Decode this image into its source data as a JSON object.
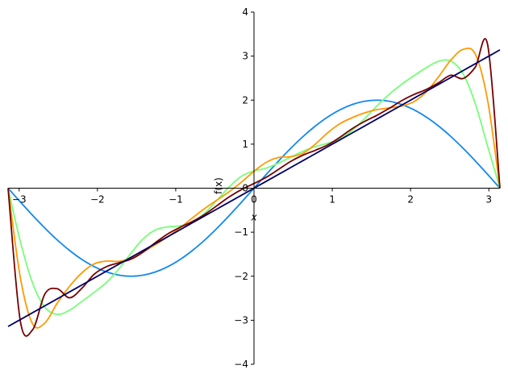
{
  "chart_data": {
    "type": "line",
    "title": "",
    "xlabel": "x",
    "ylabel": "f(x)",
    "xlim": [
      -3.14159,
      3.14159
    ],
    "ylim": [
      -4,
      4
    ],
    "grid": false,
    "legend": "none",
    "axes_style": "centered spines crossing at origin",
    "xticks": [
      -3,
      -2,
      -1,
      0,
      1,
      2,
      3
    ],
    "xtick_labels": [
      "−3",
      "−2",
      "−1",
      "0",
      "1",
      "2",
      "3"
    ],
    "yticks": [
      -4,
      -3,
      -2,
      -1,
      0,
      1,
      2,
      3,
      4
    ],
    "ytick_labels": [
      "−4",
      "−3",
      "−2",
      "−1",
      "0",
      "1",
      "2",
      "3",
      "4"
    ],
    "x": [
      -3.1416,
      -2.9845,
      -2.8274,
      -2.6704,
      -2.5133,
      -2.3562,
      -2.1991,
      -2.042,
      -1.885,
      -1.7279,
      -1.5708,
      -1.4137,
      -1.2566,
      -1.0996,
      -0.9425,
      -0.7854,
      -0.6283,
      -0.4712,
      -0.3142,
      -0.1571,
      0.0,
      0.1571,
      0.3142,
      0.4712,
      0.6283,
      0.7854,
      0.9425,
      1.0996,
      1.2566,
      1.4137,
      1.5708,
      1.7279,
      1.885,
      2.042,
      2.1991,
      2.3562,
      2.5133,
      2.6704,
      2.8274,
      2.9845,
      3.1416
    ],
    "series": [
      {
        "color": "#1188ee",
        "values": [
          0.0,
          -0.313,
          -0.618,
          -0.908,
          -1.176,
          -1.414,
          -1.618,
          -1.782,
          -1.902,
          -1.975,
          -2.0,
          -1.975,
          -1.902,
          -1.782,
          -1.618,
          -1.414,
          -1.176,
          -0.908,
          -0.618,
          -0.313,
          0.0,
          0.313,
          0.618,
          0.908,
          1.176,
          1.414,
          1.618,
          1.782,
          1.902,
          1.975,
          2.0,
          1.975,
          1.902,
          1.782,
          1.618,
          1.414,
          1.176,
          0.908,
          0.618,
          0.313,
          0.0
        ]
      },
      {
        "color": "#77ff77",
        "values": [
          0.0,
          -1.214,
          -2.158,
          -2.706,
          -2.867,
          -2.771,
          -2.573,
          -2.367,
          -2.141,
          -1.839,
          -1.475,
          -1.148,
          -0.947,
          -0.878,
          -0.854,
          -0.765,
          -0.563,
          -0.271,
          0.033,
          0.274,
          0.391,
          0.455,
          0.572,
          0.706,
          0.84,
          0.946,
          1.02,
          1.118,
          1.314,
          1.58,
          1.869,
          2.133,
          2.357,
          2.554,
          2.736,
          2.882,
          2.889,
          2.598,
          1.917,
          0.953,
          0.0
        ]
      },
      {
        "color": "#ff9900",
        "values": [
          0.0,
          -2.032,
          -3.086,
          -3.06,
          -2.61,
          -2.229,
          -1.923,
          -1.72,
          -1.656,
          -1.663,
          -1.59,
          -1.443,
          -1.281,
          -1.104,
          -0.899,
          -0.674,
          -0.46,
          -0.268,
          -0.077,
          0.143,
          0.384,
          0.588,
          0.697,
          0.717,
          0.794,
          1.004,
          1.26,
          1.467,
          1.604,
          1.711,
          1.785,
          1.823,
          1.864,
          1.965,
          2.183,
          2.527,
          2.908,
          3.151,
          3.044,
          1.992,
          0.0
        ]
      },
      {
        "color": "#770000",
        "values": [
          0.0,
          -3.024,
          -3.215,
          -2.401,
          -2.284,
          -2.49,
          -2.274,
          -1.955,
          -1.783,
          -1.697,
          -1.613,
          -1.448,
          -1.232,
          -1.036,
          -0.887,
          -0.755,
          -0.594,
          -0.395,
          -0.195,
          -0.028,
          0.106,
          0.248,
          0.428,
          0.611,
          0.753,
          0.862,
          0.984,
          1.159,
          1.355,
          1.517,
          1.656,
          1.814,
          1.986,
          2.127,
          2.242,
          2.393,
          2.566,
          2.491,
          2.752,
          3.26,
          0.0
        ]
      },
      {
        "color": "#000066",
        "values": [
          -3.1416,
          -2.9845,
          -2.8274,
          -2.6704,
          -2.5133,
          -2.3562,
          -2.1991,
          -2.042,
          -1.885,
          -1.7279,
          -1.5708,
          -1.4137,
          -1.2566,
          -1.0996,
          -0.9425,
          -0.7854,
          -0.6283,
          -0.4712,
          -0.3142,
          -0.1571,
          0.0,
          0.1571,
          0.3142,
          0.4712,
          0.6283,
          0.7854,
          0.9425,
          1.0996,
          1.2566,
          1.4137,
          1.5708,
          1.7279,
          1.885,
          2.042,
          2.1991,
          2.3562,
          2.5133,
          2.6704,
          2.8274,
          2.9845,
          3.1416
        ]
      }
    ]
  }
}
